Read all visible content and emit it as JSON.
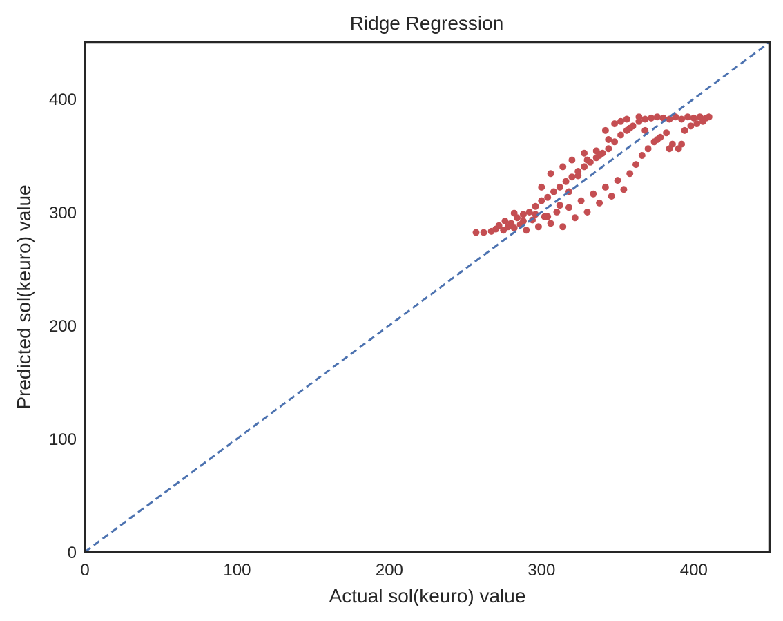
{
  "chart_data": {
    "type": "scatter",
    "title": "Ridge Regression",
    "xlabel": "Actual sol(keuro) value",
    "ylabel": "Predicted sol(keuro) value",
    "xlim": [
      0,
      450
    ],
    "ylim": [
      0,
      450
    ],
    "x_ticks": [
      0,
      100,
      200,
      300,
      400
    ],
    "y_ticks": [
      0,
      100,
      200,
      300,
      400
    ],
    "grid": false,
    "reference_line": {
      "style": "dashed",
      "from": [
        0,
        0
      ],
      "to": [
        450,
        450
      ],
      "color": "#4c72b0"
    },
    "point_color": "#c44e52",
    "series": [
      {
        "points": [
          [
            257,
            282
          ],
          [
            262,
            282
          ],
          [
            267,
            283
          ],
          [
            270,
            285
          ],
          [
            272,
            288
          ],
          [
            275,
            284
          ],
          [
            278,
            287
          ],
          [
            280,
            290
          ],
          [
            276,
            292
          ],
          [
            282,
            286
          ],
          [
            284,
            295
          ],
          [
            286,
            289
          ],
          [
            288,
            298
          ],
          [
            290,
            284
          ],
          [
            292,
            300
          ],
          [
            294,
            293
          ],
          [
            296,
            305
          ],
          [
            298,
            287
          ],
          [
            300,
            310
          ],
          [
            302,
            296
          ],
          [
            304,
            313
          ],
          [
            306,
            290
          ],
          [
            308,
            318
          ],
          [
            310,
            300
          ],
          [
            312,
            322
          ],
          [
            314,
            287
          ],
          [
            316,
            327
          ],
          [
            318,
            304
          ],
          [
            320,
            331
          ],
          [
            322,
            295
          ],
          [
            324,
            336
          ],
          [
            326,
            310
          ],
          [
            328,
            340
          ],
          [
            330,
            300
          ],
          [
            332,
            344
          ],
          [
            334,
            316
          ],
          [
            336,
            348
          ],
          [
            338,
            308
          ],
          [
            340,
            352
          ],
          [
            342,
            322
          ],
          [
            344,
            356
          ],
          [
            346,
            314
          ],
          [
            348,
            362
          ],
          [
            350,
            328
          ],
          [
            352,
            368
          ],
          [
            354,
            320
          ],
          [
            356,
            372
          ],
          [
            358,
            334
          ],
          [
            360,
            376
          ],
          [
            362,
            342
          ],
          [
            364,
            380
          ],
          [
            366,
            350
          ],
          [
            368,
            382
          ],
          [
            370,
            356
          ],
          [
            372,
            383
          ],
          [
            374,
            362
          ],
          [
            376,
            384
          ],
          [
            378,
            366
          ],
          [
            380,
            383
          ],
          [
            382,
            370
          ],
          [
            384,
            382
          ],
          [
            386,
            360
          ],
          [
            388,
            384
          ],
          [
            390,
            356
          ],
          [
            392,
            382
          ],
          [
            394,
            372
          ],
          [
            396,
            384
          ],
          [
            398,
            376
          ],
          [
            400,
            383
          ],
          [
            402,
            378
          ],
          [
            404,
            384
          ],
          [
            406,
            380
          ],
          [
            408,
            383
          ],
          [
            410,
            384
          ],
          [
            392,
            360
          ],
          [
            384,
            356
          ],
          [
            376,
            364
          ],
          [
            368,
            372
          ],
          [
            358,
            374
          ],
          [
            352,
            380
          ],
          [
            344,
            364
          ],
          [
            338,
            350
          ],
          [
            330,
            346
          ],
          [
            324,
            332
          ],
          [
            318,
            318
          ],
          [
            312,
            306
          ],
          [
            304,
            296
          ],
          [
            296,
            298
          ],
          [
            288,
            292
          ],
          [
            282,
            299
          ],
          [
            300,
            322
          ],
          [
            306,
            334
          ],
          [
            314,
            340
          ],
          [
            320,
            346
          ],
          [
            328,
            352
          ],
          [
            336,
            354
          ],
          [
            342,
            372
          ],
          [
            348,
            378
          ],
          [
            356,
            382
          ],
          [
            364,
            384
          ]
        ]
      }
    ]
  }
}
